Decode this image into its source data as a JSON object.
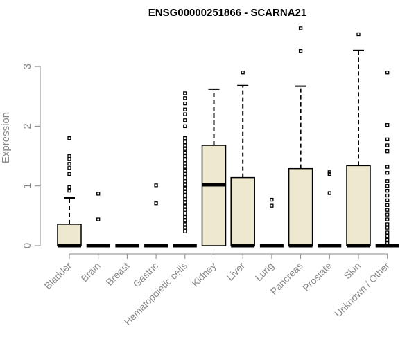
{
  "chart_data": {
    "type": "boxplot",
    "title": "ENSG00000251866 - SCARNA21",
    "ylabel": "Expression",
    "xlabel": "",
    "ylim": [
      0,
      3.7
    ],
    "yticks": [
      0,
      1,
      2,
      3
    ],
    "grid": false,
    "box_color": "#eee8cf",
    "categories": [
      "Bladder",
      "Brain",
      "Breast",
      "Gastric",
      "Hematopoietic cells",
      "Kidney",
      "Liver",
      "Lung",
      "Pancreas",
      "Prostate",
      "Skin",
      "Unknown / Other"
    ],
    "boxes": [
      {
        "q1": 0,
        "median": 0,
        "q3": 0.36,
        "whislo": 0,
        "whishi": 0.8,
        "outliers": [
          0.92,
          0.98,
          1.2,
          1.3,
          1.37,
          1.45,
          1.5,
          1.8
        ]
      },
      {
        "q1": 0,
        "median": 0,
        "q3": 0,
        "whislo": 0,
        "whishi": 0,
        "outliers": [
          0.44,
          0.87
        ]
      },
      {
        "q1": 0,
        "median": 0,
        "q3": 0,
        "whislo": 0,
        "whishi": 0,
        "outliers": []
      },
      {
        "q1": 0,
        "median": 0,
        "q3": 0,
        "whislo": 0,
        "whishi": 0,
        "outliers": [
          0.71,
          1.01
        ]
      },
      {
        "q1": 0,
        "median": 0,
        "q3": 0,
        "whislo": 0,
        "whishi": 0,
        "outliers": [
          0.24,
          0.3,
          0.36,
          0.42,
          0.48,
          0.54,
          0.6,
          0.66,
          0.72,
          0.78,
          0.84,
          0.9,
          0.96,
          1.02,
          1.08,
          1.14,
          1.2,
          1.26,
          1.32,
          1.38,
          1.44,
          1.5,
          1.56,
          1.62,
          1.68,
          1.74,
          1.8,
          2.0,
          2.1,
          2.2,
          2.28,
          2.38,
          2.47,
          2.55
        ]
      },
      {
        "q1": 0,
        "median": 1.02,
        "q3": 1.68,
        "whislo": 0,
        "whishi": 2.62,
        "outliers": []
      },
      {
        "q1": 0,
        "median": 0,
        "q3": 1.14,
        "whislo": 0,
        "whishi": 2.68,
        "outliers": [
          2.9
        ]
      },
      {
        "q1": 0,
        "median": 0,
        "q3": 0,
        "whislo": 0,
        "whishi": 0,
        "outliers": [
          0.67,
          0.77
        ]
      },
      {
        "q1": 0,
        "median": 0,
        "q3": 1.29,
        "whislo": 0,
        "whishi": 2.67,
        "outliers": [
          3.26,
          3.64
        ]
      },
      {
        "q1": 0,
        "median": 0,
        "q3": 0,
        "whislo": 0,
        "whishi": 0,
        "outliers": [
          0.88,
          1.2,
          1.23
        ]
      },
      {
        "q1": 0,
        "median": 0,
        "q3": 1.34,
        "whislo": 0,
        "whishi": 3.27,
        "outliers": [
          3.54
        ]
      },
      {
        "q1": 0,
        "median": 0,
        "q3": 0,
        "whislo": 0,
        "whishi": 0,
        "outliers": [
          0.04,
          0.1,
          0.16,
          0.22,
          0.3,
          0.36,
          0.44,
          0.52,
          0.6,
          0.68,
          0.76,
          0.84,
          0.92,
          1.0,
          1.08,
          1.22,
          1.32,
          1.58,
          1.68,
          1.78,
          2.02,
          2.9
        ]
      }
    ]
  }
}
